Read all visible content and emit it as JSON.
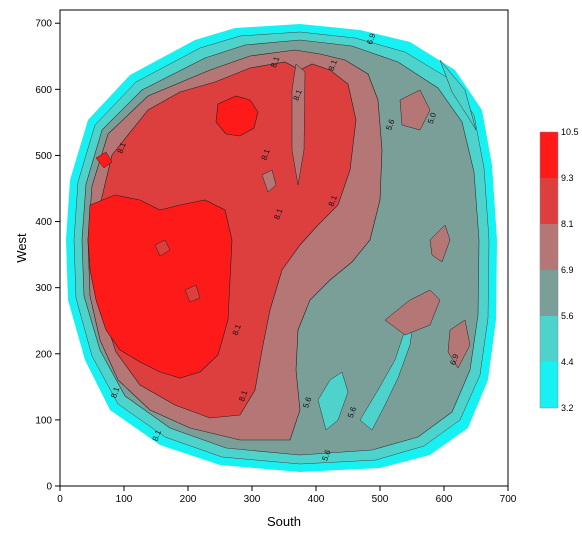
{
  "chart_data": {
    "type": "heatmap",
    "subtype": "filled contour map",
    "title": "",
    "xlabel": "South",
    "ylabel": "West",
    "xlim": [
      0,
      700
    ],
    "ylim": [
      0,
      720
    ],
    "x_ticks": [
      "0",
      "100",
      "200",
      "300",
      "400",
      "500",
      "600",
      "700"
    ],
    "y_ticks": [
      "0",
      "100",
      "200",
      "300",
      "400",
      "500",
      "600",
      "700"
    ],
    "grid": false,
    "legend": {
      "placement": "right",
      "levels": [
        "10.5",
        "9.3",
        "8.1",
        "6.9",
        "5.6",
        "4.4",
        "3.2"
      ],
      "colors": [
        "#ff1a1a",
        "#dd3f3f",
        "#b57676",
        "#7a9f98",
        "#4ed3cc",
        "#18f1f1"
      ]
    },
    "contour_labels": [
      {
        "x": 100,
        "y": 510,
        "text": "8.1"
      },
      {
        "x": 340,
        "y": 640,
        "text": "8.1"
      },
      {
        "x": 375,
        "y": 590,
        "text": "8.1"
      },
      {
        "x": 325,
        "y": 500,
        "text": "8.1"
      },
      {
        "x": 430,
        "y": 635,
        "text": "8.1"
      },
      {
        "x": 490,
        "y": 675,
        "text": "6.9"
      },
      {
        "x": 520,
        "y": 545,
        "text": "5.6"
      },
      {
        "x": 585,
        "y": 555,
        "text": "5.0"
      },
      {
        "x": 345,
        "y": 410,
        "text": "8.1"
      },
      {
        "x": 430,
        "y": 430,
        "text": "8.1"
      },
      {
        "x": 280,
        "y": 235,
        "text": "8.1"
      },
      {
        "x": 290,
        "y": 135,
        "text": "8.1"
      },
      {
        "x": 90,
        "y": 140,
        "text": "8.1"
      },
      {
        "x": 155,
        "y": 75,
        "text": "8.1"
      },
      {
        "x": 390,
        "y": 125,
        "text": "5.6"
      },
      {
        "x": 460,
        "y": 110,
        "text": "5.6"
      },
      {
        "x": 420,
        "y": 45,
        "text": "5.6"
      },
      {
        "x": 620,
        "y": 190,
        "text": "6.9"
      }
    ]
  }
}
